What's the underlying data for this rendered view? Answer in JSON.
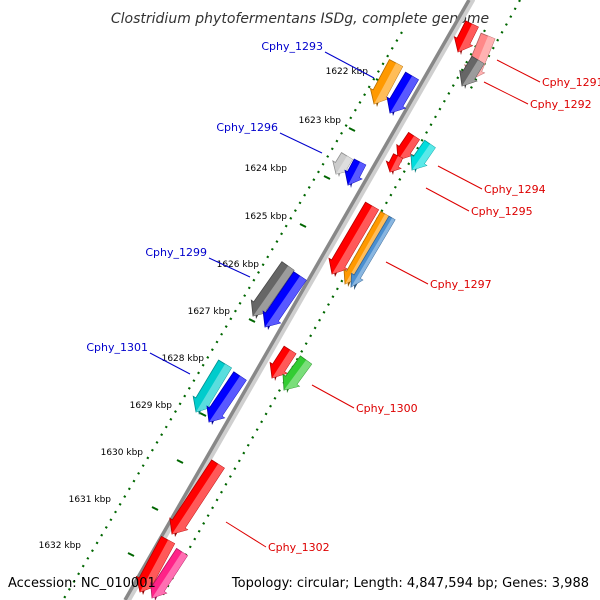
{
  "title": "Clostridium phytofermentans ISDg, complete genome",
  "footer": {
    "accession": "Accession: NC_010001",
    "summary": "Topology: circular; Length: 4,847,594 bp; Genes: 3,988"
  },
  "colors": {
    "backbone": "#888888",
    "tick_mark": "#006600",
    "forward_label": "#0000cc",
    "reverse_label": "#dd0000"
  },
  "kbp_ticks": [
    "1622 kbp",
    "1623 kbp",
    "1624 kbp",
    "1625 kbp",
    "1626 kbp",
    "1627 kbp",
    "1628 kbp",
    "1629 kbp",
    "1630 kbp",
    "1631 kbp",
    "1632 kbp"
  ],
  "genes": [
    {
      "label": "Cphy_1291",
      "strand": "reverse",
      "color": "#ff0000"
    },
    {
      "label": "Cphy_1292",
      "strand": "reverse",
      "color": "#666666"
    },
    {
      "label": "Cphy_1293",
      "strand": "forward",
      "color": "#ff9900"
    },
    {
      "label": "Cphy_1294",
      "strand": "reverse",
      "color": "#00dddd"
    },
    {
      "label": "Cphy_1295",
      "strand": "reverse",
      "color": "#ff0000"
    },
    {
      "label": "Cphy_1296",
      "strand": "forward",
      "color": "#cccccc"
    },
    {
      "label": "Cphy_1297",
      "strand": "reverse",
      "color": "#ff0000"
    },
    {
      "label": "Cphy_1299",
      "strand": "forward",
      "color": "#666666"
    },
    {
      "label": "Cphy_1300",
      "strand": "reverse",
      "color": "#33cc33"
    },
    {
      "label": "Cphy_1301",
      "strand": "forward",
      "color": "#00cccc"
    },
    {
      "label": "Cphy_1302",
      "strand": "reverse",
      "color": "#ff0000"
    }
  ]
}
